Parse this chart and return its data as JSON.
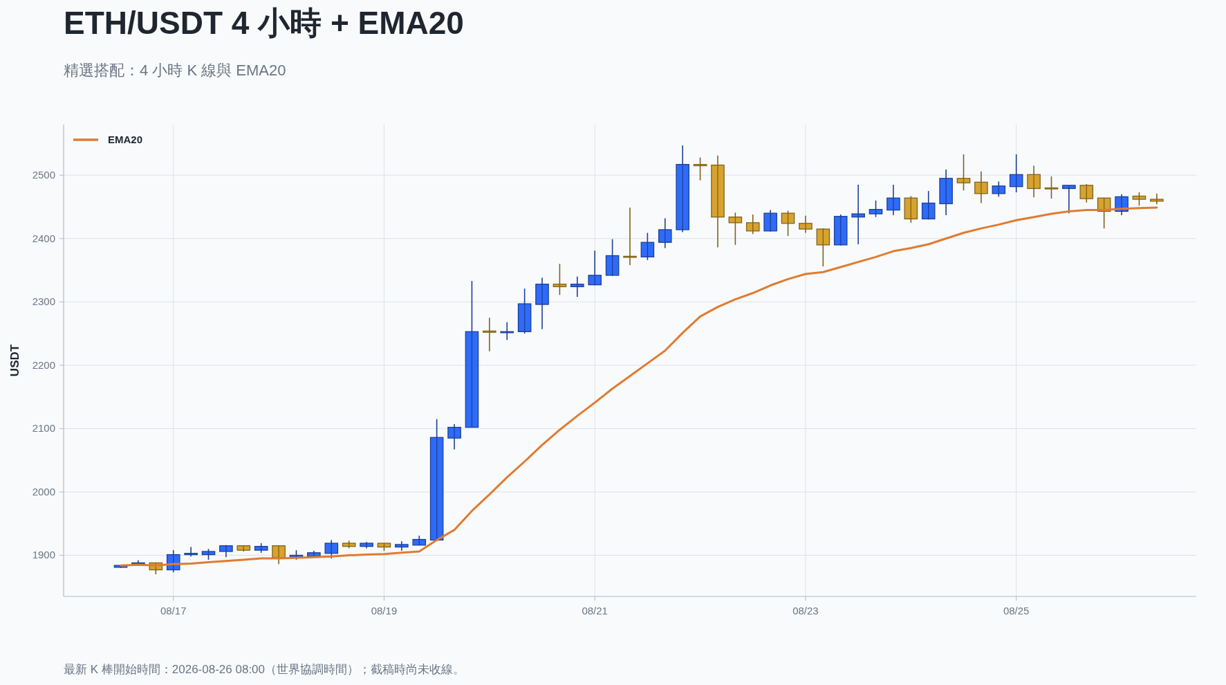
{
  "chart_data": {
    "type": "candlestick",
    "title": "ETH/USDT 4 小時 + EMA20",
    "subtitle": "精選搭配：4 小時 K 線與 EMA20",
    "ylabel": "USDT",
    "annotations": [
      "最新 K 棒開始時間：2026-08-26 08:00（世界協調時間）；截稿時尚未收線。"
    ],
    "x": [
      "2026-08-16T12:00",
      "2026-08-16T16:00",
      "2026-08-16T20:00",
      "2026-08-17T00:00",
      "2026-08-17T04:00",
      "2026-08-17T08:00",
      "2026-08-17T12:00",
      "2026-08-17T16:00",
      "2026-08-17T20:00",
      "2026-08-18T00:00",
      "2026-08-18T04:00",
      "2026-08-18T08:00",
      "2026-08-18T12:00",
      "2026-08-18T16:00",
      "2026-08-18T20:00",
      "2026-08-19T00:00",
      "2026-08-19T04:00",
      "2026-08-19T08:00",
      "2026-08-19T12:00",
      "2026-08-19T16:00",
      "2026-08-19T20:00",
      "2026-08-20T00:00",
      "2026-08-20T04:00",
      "2026-08-20T08:00",
      "2026-08-20T12:00",
      "2026-08-20T16:00",
      "2026-08-20T20:00",
      "2026-08-21T00:00",
      "2026-08-21T04:00",
      "2026-08-21T08:00",
      "2026-08-21T12:00",
      "2026-08-21T16:00",
      "2026-08-21T20:00",
      "2026-08-22T00:00",
      "2026-08-22T04:00",
      "2026-08-22T08:00",
      "2026-08-22T12:00",
      "2026-08-22T16:00",
      "2026-08-22T20:00",
      "2026-08-23T00:00",
      "2026-08-23T04:00",
      "2026-08-23T08:00",
      "2026-08-23T12:00",
      "2026-08-23T16:00",
      "2026-08-23T20:00",
      "2026-08-24T00:00",
      "2026-08-24T04:00",
      "2026-08-24T08:00",
      "2026-08-24T12:00",
      "2026-08-24T16:00",
      "2026-08-24T20:00",
      "2026-08-25T00:00",
      "2026-08-25T04:00",
      "2026-08-25T08:00",
      "2026-08-25T12:00",
      "2026-08-25T16:00",
      "2026-08-25T20:00",
      "2026-08-26T00:00",
      "2026-08-26T04:00",
      "2026-08-26T08:00"
    ],
    "ohlc": [
      [
        1881,
        1885,
        1880,
        1884
      ],
      [
        1886,
        1892,
        1885,
        1888
      ],
      [
        1888,
        1888,
        1870,
        1877
      ],
      [
        1877,
        1908,
        1873,
        1901
      ],
      [
        1901,
        1913,
        1898,
        1903
      ],
      [
        1901,
        1910,
        1893,
        1906
      ],
      [
        1906,
        1916,
        1897,
        1915
      ],
      [
        1915,
        1915,
        1906,
        1908
      ],
      [
        1908,
        1919,
        1904,
        1914
      ],
      [
        1915,
        1915,
        1886,
        1896
      ],
      [
        1897,
        1908,
        1893,
        1900
      ],
      [
        1898,
        1907,
        1897,
        1904
      ],
      [
        1903,
        1924,
        1895,
        1919
      ],
      [
        1919,
        1923,
        1911,
        1914
      ],
      [
        1914,
        1921,
        1911,
        1919
      ],
      [
        1919,
        1919,
        1907,
        1913
      ],
      [
        1913,
        1922,
        1907,
        1917
      ],
      [
        1916,
        1931,
        1916,
        1925
      ],
      [
        1924,
        2115,
        1924,
        2086
      ],
      [
        2085,
        2107,
        2067,
        2102
      ],
      [
        2102,
        2333,
        2102,
        2253
      ],
      [
        2254,
        2275,
        2222,
        2252
      ],
      [
        2252,
        2268,
        2240,
        2253
      ],
      [
        2253,
        2321,
        2250,
        2297
      ],
      [
        2296,
        2338,
        2257,
        2328
      ],
      [
        2328,
        2360,
        2311,
        2324
      ],
      [
        2324,
        2340,
        2308,
        2328
      ],
      [
        2327,
        2381,
        2326,
        2342
      ],
      [
        2342,
        2399,
        2341,
        2373
      ],
      [
        2372,
        2449,
        2358,
        2371
      ],
      [
        2371,
        2409,
        2366,
        2394
      ],
      [
        2394,
        2432,
        2385,
        2414
      ],
      [
        2414,
        2547,
        2410,
        2517
      ],
      [
        2517,
        2528,
        2492,
        2515
      ],
      [
        2516,
        2531,
        2386,
        2434
      ],
      [
        2434,
        2441,
        2390,
        2425
      ],
      [
        2425,
        2438,
        2407,
        2412
      ],
      [
        2412,
        2445,
        2411,
        2440
      ],
      [
        2440,
        2444,
        2404,
        2424
      ],
      [
        2424,
        2436,
        2409,
        2415
      ],
      [
        2415,
        2416,
        2356,
        2390
      ],
      [
        2390,
        2438,
        2389,
        2435
      ],
      [
        2434,
        2485,
        2391,
        2439
      ],
      [
        2439,
        2460,
        2434,
        2446
      ],
      [
        2445,
        2485,
        2437,
        2464
      ],
      [
        2464,
        2467,
        2425,
        2431
      ],
      [
        2431,
        2475,
        2430,
        2456
      ],
      [
        2455,
        2509,
        2437,
        2495
      ],
      [
        2495,
        2533,
        2476,
        2488
      ],
      [
        2489,
        2506,
        2456,
        2471
      ],
      [
        2471,
        2490,
        2466,
        2483
      ],
      [
        2482,
        2533,
        2473,
        2501
      ],
      [
        2501,
        2515,
        2465,
        2479
      ],
      [
        2480,
        2498,
        2463,
        2479
      ],
      [
        2479,
        2484,
        2440,
        2484
      ],
      [
        2484,
        2486,
        2457,
        2463
      ],
      [
        2464,
        2464,
        2416,
        2443
      ],
      [
        2443,
        2470,
        2437,
        2466
      ],
      [
        2467,
        2473,
        2452,
        2462
      ],
      [
        2462,
        2471,
        2454,
        2459
      ]
    ],
    "colors": [
      "#2f6bfa",
      "#2f6bfa",
      "#d6a32e",
      "#2f6bfa",
      "#2f6bfa",
      "#2f6bfa",
      "#2f6bfa",
      "#d6a32e",
      "#2f6bfa",
      "#d6a32e",
      "#2f6bfa",
      "#2f6bfa",
      "#2f6bfa",
      "#d6a32e",
      "#2f6bfa",
      "#d6a32e",
      "#2f6bfa",
      "#2f6bfa",
      "#2f6bfa",
      "#2f6bfa",
      "#2f6bfa",
      "#d6a32e",
      "#2f6bfa",
      "#2f6bfa",
      "#2f6bfa",
      "#d6a32e",
      "#2f6bfa",
      "#2f6bfa",
      "#2f6bfa",
      "#d6a32e",
      "#2f6bfa",
      "#2f6bfa",
      "#2f6bfa",
      "#d6a32e",
      "#d6a32e",
      "#d6a32e",
      "#d6a32e",
      "#2f6bfa",
      "#d6a32e",
      "#d6a32e",
      "#d6a32e",
      "#2f6bfa",
      "#2f6bfa",
      "#2f6bfa",
      "#2f6bfa",
      "#d6a32e",
      "#2f6bfa",
      "#2f6bfa",
      "#d6a32e",
      "#d6a32e",
      "#2f6bfa",
      "#2f6bfa",
      "#d6a32e",
      "#d6a32e",
      "#2f6bfa",
      "#d6a32e",
      "#d6a32e",
      "#2f6bfa",
      "#d6a32e",
      "#d6a32e"
    ],
    "series": [
      {
        "type": "line",
        "name": "EMA20",
        "color": "#e07b30",
        "values": [
          1884,
          1885,
          1884,
          1886,
          1887,
          1889,
          1891,
          1893,
          1895,
          1895,
          1896,
          1897,
          1898,
          1900,
          1901,
          1902,
          1904,
          1906,
          1924,
          1940,
          1970,
          1996,
          2023,
          2048,
          2074,
          2098,
          2120,
          2141,
          2163,
          2183,
          2203,
          2223,
          2251,
          2277,
          2292,
          2304,
          2314,
          2326,
          2336,
          2344,
          2347,
          2355,
          2363,
          2371,
          2380,
          2385,
          2391,
          2400,
          2409,
          2416,
          2422,
          2429,
          2434,
          2439,
          2443,
          2445,
          2445,
          2447,
          2448,
          2449
        ]
      }
    ],
    "xlim": [
      "2026-08-15T23:00",
      "2026-08-26T17:00"
    ],
    "xticks": [
      {
        "value": "2026-08-17",
        "label": "08/17"
      },
      {
        "value": "2026-08-19",
        "label": "08/19"
      },
      {
        "value": "2026-08-21",
        "label": "08/21"
      },
      {
        "value": "2026-08-23",
        "label": "08/23"
      },
      {
        "value": "2026-08-25",
        "label": "08/25"
      }
    ],
    "ylim": [
      1835,
      2580
    ],
    "yticks": [
      1900,
      2000,
      2100,
      2200,
      2300,
      2400,
      2500
    ],
    "grid": true,
    "legend": "top left"
  }
}
